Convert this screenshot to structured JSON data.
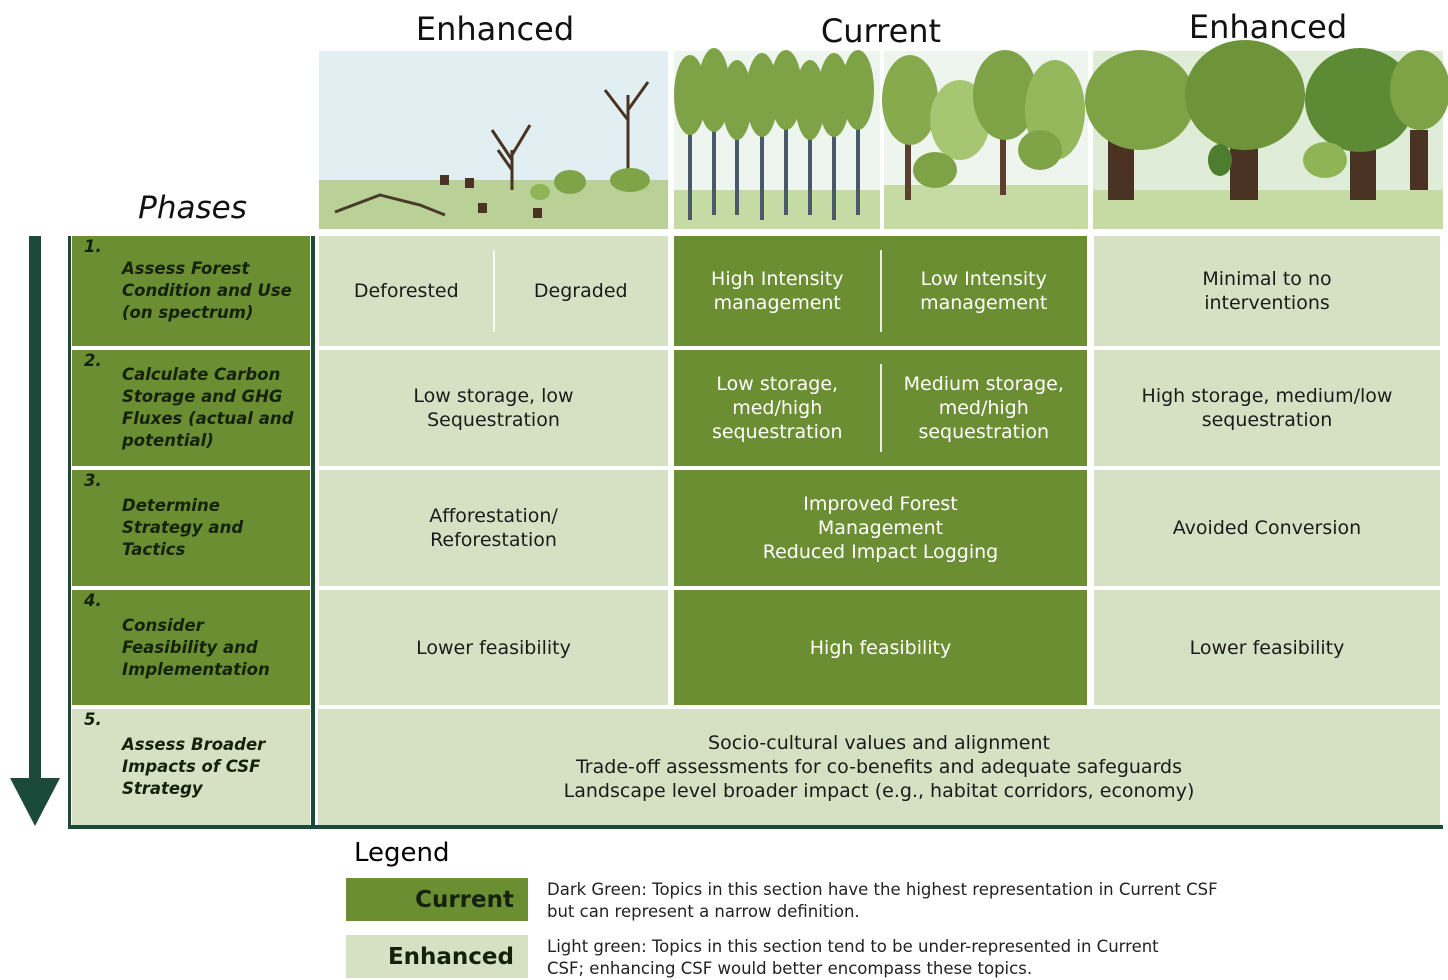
{
  "columns": [
    {
      "label": "Enhanced"
    },
    {
      "label": "Current"
    },
    {
      "label": "Enhanced"
    }
  ],
  "phases_title": "Phases",
  "rows": [
    {
      "number": "1.",
      "phase": [
        "Assess Forest",
        "Condition and Use",
        "(on spectrum)"
      ],
      "enhanced_before": [
        [
          "Deforested"
        ],
        [
          "Degraded"
        ]
      ],
      "current": [
        [
          "High Intensity",
          "management"
        ],
        [
          "Low Intensity",
          "management"
        ]
      ],
      "enhanced_after": [
        [
          "Minimal to no",
          "interventions"
        ]
      ]
    },
    {
      "number": "2.",
      "phase": [
        "Calculate Carbon",
        "Storage and GHG",
        "Fluxes (actual and",
        "potential)"
      ],
      "enhanced_before": [
        [
          "Low storage, low",
          "Sequestration"
        ]
      ],
      "current": [
        [
          "Low storage,",
          "med/high",
          "sequestration"
        ],
        [
          "Medium storage,",
          "med/high",
          "sequestration"
        ]
      ],
      "enhanced_after": [
        [
          "High storage, medium/low",
          "sequestration"
        ]
      ]
    },
    {
      "number": "3.",
      "phase": [
        "Determine",
        "Strategy and",
        "Tactics"
      ],
      "enhanced_before": [
        [
          "Afforestation/",
          "Reforestation"
        ]
      ],
      "current": [
        [
          "Improved Forest",
          "Management",
          "Reduced Impact Logging"
        ]
      ],
      "enhanced_after": [
        [
          "Avoided Conversion"
        ]
      ]
    },
    {
      "number": "4.",
      "phase": [
        "Consider",
        "Feasibility and",
        "Implementation"
      ],
      "enhanced_before": [
        [
          "Lower feasibility"
        ]
      ],
      "current": [
        [
          "High feasibility"
        ]
      ],
      "enhanced_after": [
        [
          "Lower feasibility"
        ]
      ]
    },
    {
      "number": "5.",
      "phase": [
        "Assess Broader",
        "Impacts of CSF",
        "Strategy"
      ],
      "broader": [
        [
          "Socio-cultural values and alignment",
          "Trade-off assessments for co-benefits and adequate safeguards",
          "Landscape level broader impact (e.g., habitat corridors, economy)"
        ]
      ]
    }
  ],
  "legend": {
    "title": "Legend",
    "items": [
      {
        "label": "Current",
        "description": [
          "Dark Green: Topics in this section have the highest representation in Current CSF",
          "but can represent a narrow definition."
        ]
      },
      {
        "label": "Enhanced",
        "description": [
          "Light green: Topics in this section tend to be under-represented in Current",
          "CSF; enhancing CSF would better encompass these topics."
        ]
      }
    ]
  }
}
